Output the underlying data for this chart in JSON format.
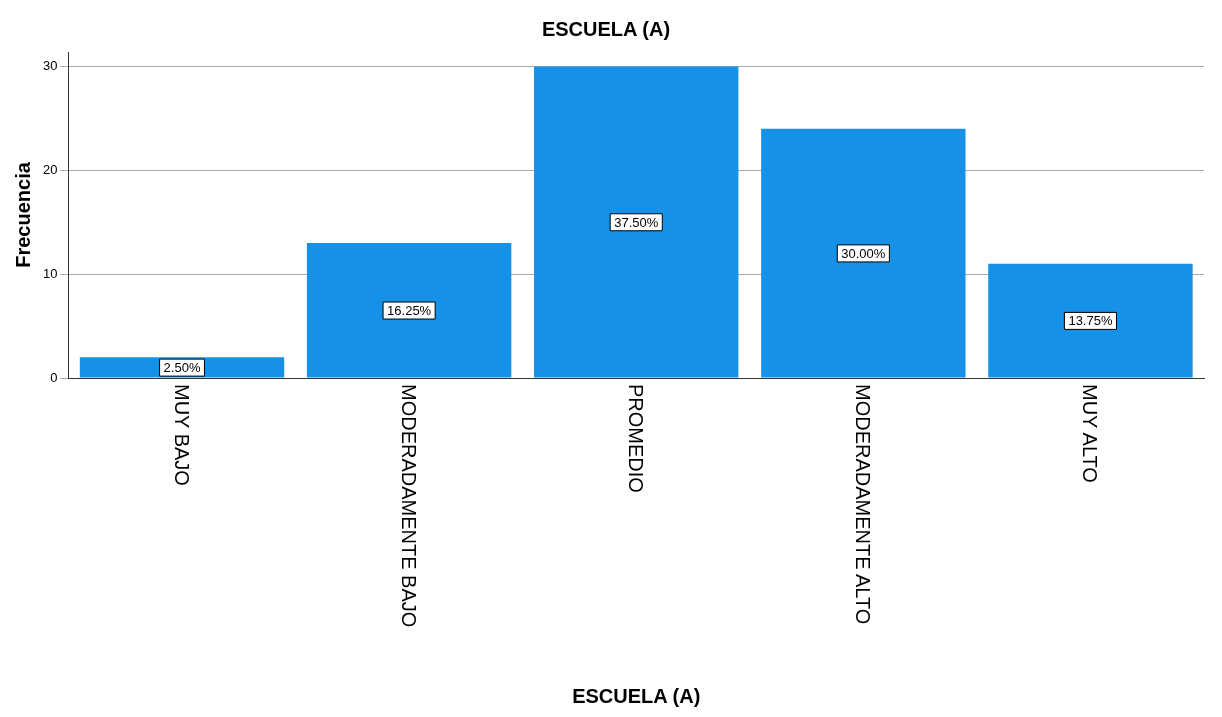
{
  "chart_data": {
    "type": "bar",
    "title": "ESCUELA (A)",
    "xlabel": "ESCUELA (A)",
    "ylabel": "Frecuencia",
    "categories": [
      "MUY BAJO",
      "MODERADAMENTE BAJO",
      "PROMEDIO",
      "MODERADAMENTE ALTO",
      "MUY ALTO"
    ],
    "values": [
      2,
      13,
      30,
      24,
      11
    ],
    "annotations": [
      "2.50%",
      "16.25%",
      "37.50%",
      "30.00%",
      "13.75%"
    ],
    "color": "#1591e8",
    "ylim": [
      0,
      31.4
    ],
    "yticks": [
      0,
      10,
      20,
      30
    ],
    "grid": "y",
    "legend": false
  }
}
